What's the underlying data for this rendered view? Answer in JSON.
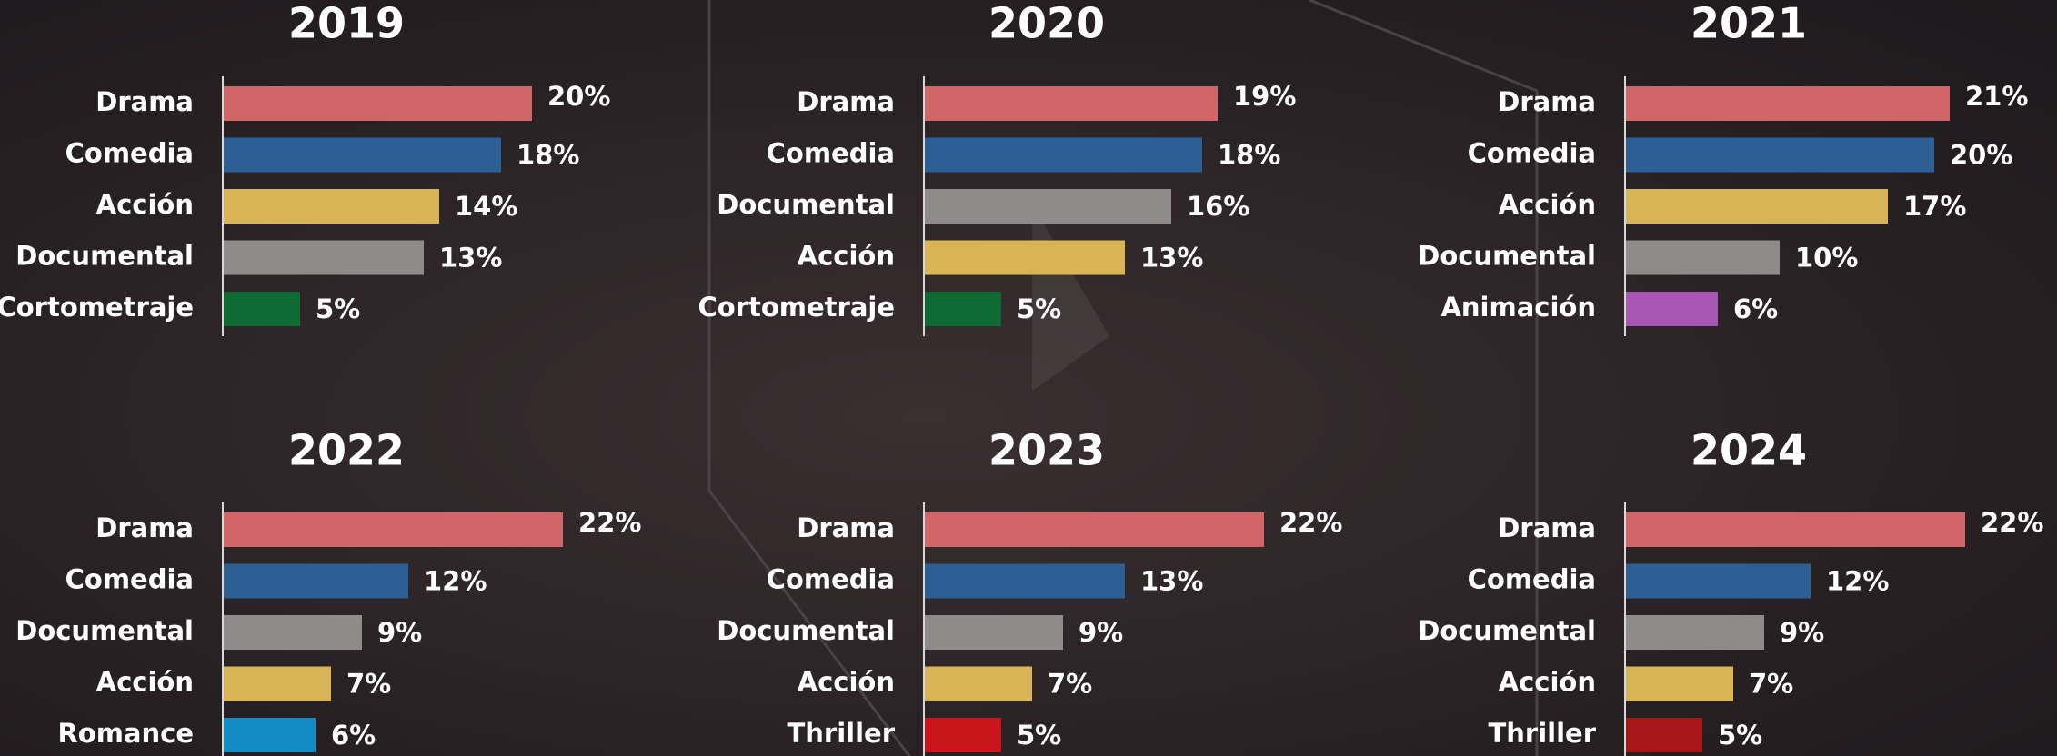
{
  "chart_data": [
    {
      "type": "bar",
      "title": "2019",
      "categories": [
        "Drama",
        "Comedia",
        "Acción",
        "Documental",
        "Cortometraje"
      ],
      "values": [
        20,
        18,
        14,
        13,
        5
      ],
      "value_labels": [
        "20%",
        "18%",
        "14%",
        "13%",
        "5%"
      ],
      "colors": [
        "#d06668",
        "#2e5f94",
        "#d8b456",
        "#8f8b8b",
        "#0f6b34"
      ]
    },
    {
      "type": "bar",
      "title": "2020",
      "categories": [
        "Drama",
        "Comedia",
        "Documental",
        "Acción",
        "Cortometraje"
      ],
      "values": [
        19,
        18,
        16,
        13,
        5
      ],
      "value_labels": [
        "19%",
        "18%",
        "16%",
        "13%",
        "5%"
      ],
      "colors": [
        "#d06668",
        "#2e5f94",
        "#8f8b8b",
        "#d8b456",
        "#0f6b34"
      ]
    },
    {
      "type": "bar",
      "title": "2021",
      "categories": [
        "Drama",
        "Comedia",
        "Acción",
        "Documental",
        "Animación"
      ],
      "values": [
        21,
        20,
        17,
        10,
        6
      ],
      "value_labels": [
        "21%",
        "20%",
        "17%",
        "10%",
        "6%"
      ],
      "colors": [
        "#d06668",
        "#2e5f94",
        "#d8b456",
        "#8f8b8b",
        "#a857b5"
      ]
    },
    {
      "type": "bar",
      "title": "2022",
      "categories": [
        "Drama",
        "Comedia",
        "Documental",
        "Acción",
        "Romance"
      ],
      "values": [
        22,
        12,
        9,
        7,
        6
      ],
      "value_labels": [
        "22%",
        "12%",
        "9%",
        "7%",
        "6%"
      ],
      "colors": [
        "#d06668",
        "#2e5f94",
        "#8f8b8b",
        "#d8b456",
        "#138bc4"
      ]
    },
    {
      "type": "bar",
      "title": "2023",
      "categories": [
        "Drama",
        "Comedia",
        "Documental",
        "Acción",
        "Thriller"
      ],
      "values": [
        22,
        13,
        9,
        7,
        5
      ],
      "value_labels": [
        "22%",
        "13%",
        "9%",
        "7%",
        "5%"
      ],
      "colors": [
        "#d06668",
        "#2e5f94",
        "#8f8b8b",
        "#d8b456",
        "#c8141a"
      ]
    },
    {
      "type": "bar",
      "title": "2024",
      "categories": [
        "Drama",
        "Comedia",
        "Documental",
        "Acción",
        "Thriller"
      ],
      "values": [
        22,
        12,
        9,
        7,
        5
      ],
      "value_labels": [
        "22%",
        "12%",
        "9%",
        "7%",
        "5%"
      ],
      "colors": [
        "#d06668",
        "#2e5f94",
        "#8f8b8b",
        "#d8b456",
        "#a51718"
      ]
    }
  ]
}
